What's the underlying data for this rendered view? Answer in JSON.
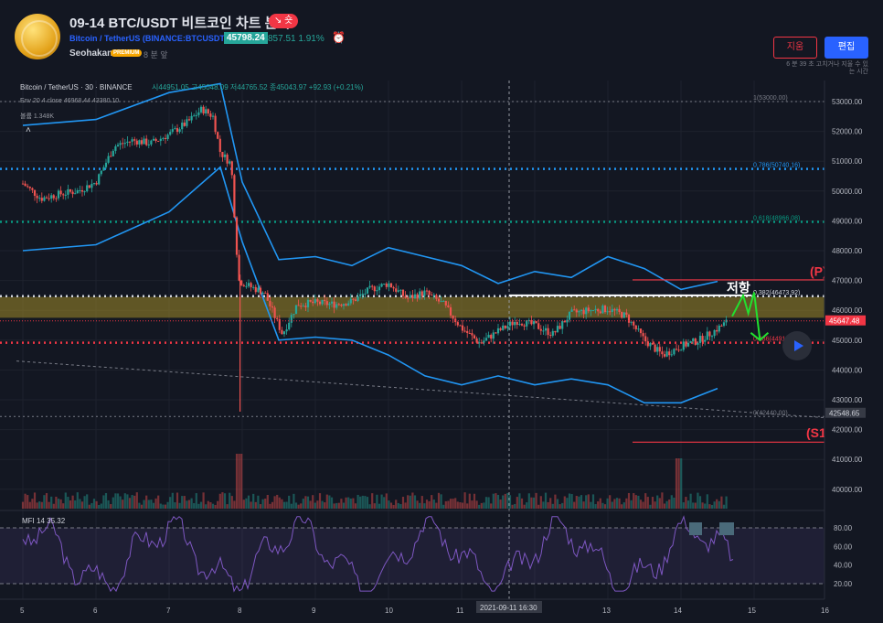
{
  "header": {
    "title": "09-14 BTC/USDT 비트코인 차트 분석",
    "direction_badge": "↘ 숏",
    "symbol_line": "Bitcoin / TetherUS (BINANCE:BTCUSDT)",
    "price": "45798.24",
    "change": "857.51  1.91%",
    "author": "Seohakant",
    "author_badge": "PREMIUM",
    "time_ago": "8 분 앞",
    "delete_label": "지움",
    "edit_label": "편집",
    "edit_note_line1": "6 분 39 초 고치거나 지울 수 있",
    "edit_note_line2": "는 시간"
  },
  "legend": {
    "symbol": "Bitcoin / TetherUS · 30 · BINANCE",
    "ohlc": "시44951.05 고45048.09 저44765.52 종45043.97 +92.93 (+0.21%)",
    "env": "Env 20 4 close  46968.44  43380.10",
    "volume": "볼륨  1.348K",
    "mfi": "MFI 14  35.32"
  },
  "price_axis": [
    "53000.00",
    "52000.00",
    "51000.00",
    "50000.00",
    "49000.00",
    "48000.00",
    "47000.00",
    "46000.00",
    "45000.00",
    "44000.00",
    "43000.00",
    "42000.00",
    "41000.00",
    "40000.00"
  ],
  "price_tags": {
    "current": "45647.48",
    "level": "42548.65"
  },
  "mfi_axis": [
    "80.00",
    "60.00",
    "40.00",
    "20.00"
  ],
  "time_axis": [
    "5",
    "6",
    "7",
    "8",
    "9",
    "10",
    "11",
    "13",
    "14",
    "15",
    "16"
  ],
  "crosshair_label": "2021-09-11  16:30",
  "fib_levels": [
    {
      "label": "1(53000.00)",
      "price": 53000,
      "color": "#787b86"
    },
    {
      "label": "0.786(50740.16)",
      "price": 50740.16,
      "color": "#2196f3"
    },
    {
      "label": "0.618(48966.08)",
      "price": 48966.08,
      "color": "#089981"
    },
    {
      "label": "0.382(46473.92)",
      "price": 46473.92,
      "color": "#d1d4dc"
    },
    {
      "label": "0.236(44911.44)",
      "price": 44911.44,
      "color": "#f23645"
    },
    {
      "label": "0(42440.00)",
      "price": 42440,
      "color": "#787b86"
    }
  ],
  "annotations": {
    "resistance": "저항",
    "pivot": "(P)",
    "support": "(S1"
  },
  "colors": {
    "up": "#26a69a",
    "down": "#ef5350",
    "band": "#2196f3",
    "mfi": "#7e57c2",
    "accent": "#2962ff"
  },
  "chart_data": {
    "type": "candlestick",
    "symbol": "BTCUSDT",
    "interval": "30",
    "ylim": [
      39500,
      53600
    ],
    "fib_retracement": [
      53000,
      50740.16,
      48966.08,
      46473.92,
      44911.44,
      42440
    ],
    "resistance_zone": [
      45750,
      46450
    ],
    "current_price": 45647.48,
    "close_path": [
      [
        5.0,
        50250
      ],
      [
        5.25,
        49750
      ],
      [
        5.5,
        49900
      ],
      [
        5.75,
        50000
      ],
      [
        6.0,
        50300
      ],
      [
        6.25,
        51500
      ],
      [
        6.5,
        51700
      ],
      [
        6.75,
        51600
      ],
      [
        7.0,
        51900
      ],
      [
        7.25,
        52300
      ],
      [
        7.45,
        52750
      ],
      [
        7.6,
        52500
      ],
      [
        7.7,
        51300
      ],
      [
        7.85,
        50900
      ],
      [
        7.95,
        47000
      ],
      [
        8.1,
        46800
      ],
      [
        8.3,
        46600
      ],
      [
        8.55,
        45200
      ],
      [
        8.75,
        46200
      ],
      [
        9.0,
        46250
      ],
      [
        9.25,
        46200
      ],
      [
        9.5,
        46300
      ],
      [
        9.75,
        46700
      ],
      [
        10.0,
        46900
      ],
      [
        10.25,
        46400
      ],
      [
        10.5,
        46600
      ],
      [
        10.75,
        46200
      ],
      [
        11.0,
        45400
      ],
      [
        11.25,
        44900
      ],
      [
        11.5,
        45300
      ],
      [
        11.75,
        45650
      ],
      [
        12.0,
        45500
      ],
      [
        12.25,
        45200
      ],
      [
        12.5,
        45900
      ],
      [
        12.75,
        46000
      ],
      [
        13.0,
        46050
      ],
      [
        13.25,
        45800
      ],
      [
        13.5,
        45000
      ],
      [
        13.75,
        44500
      ],
      [
        14.0,
        44800
      ],
      [
        14.25,
        45000
      ],
      [
        14.45,
        45300
      ],
      [
        14.65,
        45650
      ]
    ],
    "envelope_upper": [
      [
        5.0,
        52200
      ],
      [
        6.0,
        52400
      ],
      [
        7.0,
        53300
      ],
      [
        7.7,
        53600
      ],
      [
        8.0,
        50300
      ],
      [
        8.5,
        47700
      ],
      [
        9.0,
        47800
      ],
      [
        9.5,
        47500
      ],
      [
        10.0,
        48100
      ],
      [
        10.5,
        47800
      ],
      [
        11.0,
        47500
      ],
      [
        11.5,
        46900
      ],
      [
        12.0,
        47300
      ],
      [
        12.5,
        47100
      ],
      [
        13.0,
        47800
      ],
      [
        13.5,
        47400
      ],
      [
        14.0,
        46700
      ],
      [
        14.5,
        46970
      ]
    ],
    "envelope_lower": [
      [
        5.0,
        48000
      ],
      [
        6.0,
        48200
      ],
      [
        7.0,
        49300
      ],
      [
        7.7,
        50800
      ],
      [
        8.0,
        48300
      ],
      [
        8.5,
        45000
      ],
      [
        9.0,
        45100
      ],
      [
        9.5,
        45000
      ],
      [
        10.0,
        44500
      ],
      [
        10.5,
        43800
      ],
      [
        11.0,
        43500
      ],
      [
        11.5,
        43800
      ],
      [
        12.0,
        43500
      ],
      [
        12.5,
        43700
      ],
      [
        13.0,
        43500
      ],
      [
        13.5,
        42900
      ],
      [
        14.0,
        42900
      ],
      [
        14.5,
        43380
      ]
    ],
    "projection": [
      [
        14.7,
        45800
      ],
      [
        14.85,
        46500
      ],
      [
        14.92,
        45900
      ],
      [
        15.0,
        46600
      ],
      [
        15.08,
        45000
      ]
    ],
    "mfi": {
      "last": 35.32,
      "overbought": 80,
      "oversold": 20
    }
  }
}
